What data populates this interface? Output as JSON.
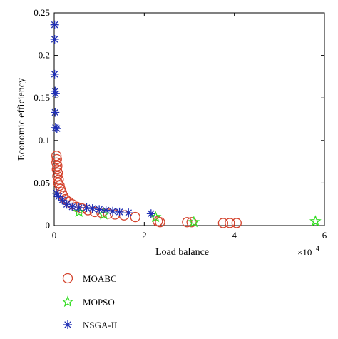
{
  "chart_data": {
    "type": "scatter",
    "xlabel": "Load balance",
    "ylabel": "Economic efficiency",
    "x_multiplier": {
      "base": "×10",
      "exponent": "−4"
    },
    "xlim": [
      0,
      6
    ],
    "ylim": [
      0,
      0.25
    ],
    "x_ticks": [
      {
        "value": 0,
        "label": "0"
      },
      {
        "value": 2,
        "label": "2"
      },
      {
        "value": 4,
        "label": "4"
      },
      {
        "value": 6,
        "label": "6"
      }
    ],
    "y_ticks": [
      {
        "value": 0,
        "label": "0"
      },
      {
        "value": 0.05,
        "label": "0.05"
      },
      {
        "value": 0.1,
        "label": "0.1"
      },
      {
        "value": 0.15,
        "label": "0.15"
      },
      {
        "value": 0.2,
        "label": "0.2"
      },
      {
        "value": 0.25,
        "label": "0.25"
      }
    ],
    "grid": false,
    "legend_position": "below",
    "series": [
      {
        "name": "MOABC",
        "marker": "circle",
        "color": "#d4442e",
        "points": [
          [
            0.05,
            0.082
          ],
          [
            0.06,
            0.078
          ],
          [
            0.05,
            0.074
          ],
          [
            0.07,
            0.07
          ],
          [
            0.06,
            0.066
          ],
          [
            0.08,
            0.062
          ],
          [
            0.07,
            0.058
          ],
          [
            0.1,
            0.054
          ],
          [
            0.09,
            0.05
          ],
          [
            0.12,
            0.047
          ],
          [
            0.14,
            0.043
          ],
          [
            0.17,
            0.039
          ],
          [
            0.2,
            0.035
          ],
          [
            0.25,
            0.031
          ],
          [
            0.32,
            0.028
          ],
          [
            0.4,
            0.025
          ],
          [
            0.5,
            0.022
          ],
          [
            0.62,
            0.02
          ],
          [
            0.75,
            0.018
          ],
          [
            0.9,
            0.016
          ],
          [
            1.05,
            0.015
          ],
          [
            1.2,
            0.014
          ],
          [
            1.35,
            0.013
          ],
          [
            1.55,
            0.012
          ],
          [
            1.8,
            0.01
          ],
          [
            2.3,
            0.005
          ],
          [
            2.35,
            0.004
          ],
          [
            2.95,
            0.004
          ],
          [
            3.05,
            0.004
          ],
          [
            3.75,
            0.003
          ],
          [
            3.9,
            0.003
          ],
          [
            4.05,
            0.003
          ]
        ]
      },
      {
        "name": "MOPSO",
        "marker": "star",
        "color": "#33dd22",
        "points": [
          [
            0.55,
            0.016
          ],
          [
            1.1,
            0.013
          ],
          [
            2.25,
            0.01
          ],
          [
            3.1,
            0.004
          ],
          [
            5.8,
            0.005
          ]
        ]
      },
      {
        "name": "NSGA-II",
        "marker": "asterisk",
        "color": "#1f2fb5",
        "points": [
          [
            0.01,
            0.236
          ],
          [
            0.01,
            0.219
          ],
          [
            0.01,
            0.178
          ],
          [
            0.02,
            0.158
          ],
          [
            0.03,
            0.155
          ],
          [
            0.02,
            0.133
          ],
          [
            0.03,
            0.115
          ],
          [
            0.06,
            0.114
          ],
          [
            0.05,
            0.038
          ],
          [
            0.1,
            0.034
          ],
          [
            0.18,
            0.03
          ],
          [
            0.28,
            0.025
          ],
          [
            0.4,
            0.022
          ],
          [
            0.55,
            0.021
          ],
          [
            0.72,
            0.021
          ],
          [
            0.85,
            0.02
          ],
          [
            1.0,
            0.019
          ],
          [
            1.15,
            0.018
          ],
          [
            1.3,
            0.017
          ],
          [
            1.45,
            0.016
          ],
          [
            1.65,
            0.015
          ],
          [
            2.15,
            0.014
          ]
        ]
      }
    ]
  }
}
